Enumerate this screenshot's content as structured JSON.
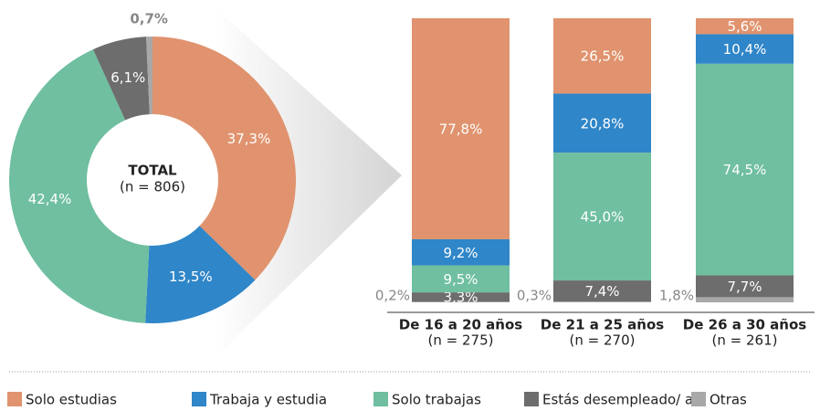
{
  "chart_data": [
    {
      "type": "pie",
      "donut": true,
      "center_title": "TOTAL",
      "center_subtitle": "(n = 806)",
      "values": [
        37.3,
        13.5,
        42.4,
        6.1,
        0.7
      ],
      "value_labels": [
        "37,3%",
        "13,5%",
        "42,4%",
        "6,1%",
        "0,7%"
      ],
      "colors": [
        "#e0936e",
        "#2f86c8",
        "#6fbfa0",
        "#6d6d6d",
        "#a8a8a8"
      ]
    },
    {
      "type": "stacked_bar",
      "categories": [
        "De 16 a 20 años",
        "De 21 a 25 años",
        "De 26 a 30 años"
      ],
      "category_notes": [
        "(n = 275)",
        "(n = 270)",
        "(n = 261)"
      ],
      "ylim": [
        0,
        100
      ],
      "series": [
        {
          "name": "Solo estudias",
          "color": "#e0936e",
          "values": [
            77.8,
            26.5,
            5.6
          ],
          "value_labels": [
            "77,8%",
            "26,5%",
            "5,6%"
          ]
        },
        {
          "name": "Trabaja y estudia",
          "color": "#2f86c8",
          "values": [
            9.2,
            20.8,
            10.4
          ],
          "value_labels": [
            "9,2%",
            "20,8%",
            "10,4%"
          ]
        },
        {
          "name": "Solo trabajas",
          "color": "#6fbfa0",
          "values": [
            9.5,
            45.0,
            74.5
          ],
          "value_labels": [
            "9,5%",
            "45,0%",
            "74,5%"
          ]
        },
        {
          "name": "Estás desempleado/ a",
          "color": "#6d6d6d",
          "values": [
            3.3,
            7.4,
            7.7
          ],
          "value_labels": [
            "3,3%",
            "7,4%",
            "7,7%"
          ]
        },
        {
          "name": "Otras",
          "color": "#a8a8a8",
          "values": [
            0.2,
            0.3,
            1.8
          ],
          "value_labels": [
            "0,2%",
            "0,3%",
            "1,8%"
          ]
        }
      ],
      "legend": "bottom"
    }
  ]
}
